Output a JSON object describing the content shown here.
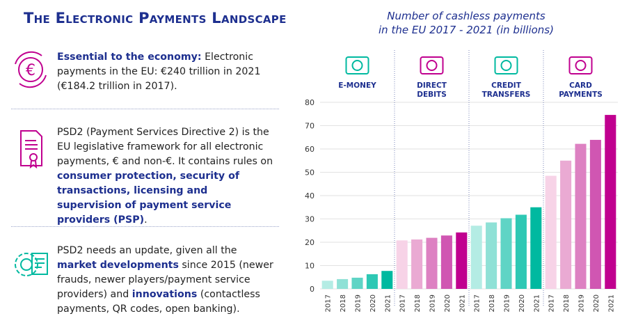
{
  "header": {
    "title": "The Electronic Payments Landscape"
  },
  "blocks": [
    {
      "parts": [
        {
          "text": "Essential to the economy:",
          "bold": true
        },
        {
          "text": " Electronic payments in the EU: €240 trillion in 2021 (€184.2 trillion in 2017)."
        }
      ]
    },
    {
      "parts": [
        {
          "text": "PSD2 (Payment Services Directive 2) is the EU legislative framework for all electronic payments, € and non-€. It contains rules on "
        },
        {
          "text": "consumer protection, security of transactions, licensing and supervision of payment service providers (PSP)",
          "bold": true
        },
        {
          "text": "."
        }
      ]
    },
    {
      "parts": [
        {
          "text": "PSD2 needs an update, given all the "
        },
        {
          "text": "market developments",
          "bold": true
        },
        {
          "text": " since 2015 (newer frauds, newer players/payment service providers) and "
        },
        {
          "text": "innovations",
          "bold": true
        },
        {
          "text": " (contactless payments, QR codes, open banking)."
        }
      ]
    }
  ],
  "chart_data": {
    "type": "bar",
    "title": [
      "Number of cashless payments",
      "in the EU 2017 - 2021 (in billions)"
    ],
    "ylim": [
      0,
      80
    ],
    "yticks": [
      0,
      10,
      20,
      30,
      40,
      50,
      60,
      70,
      80
    ],
    "grid": true,
    "groups": [
      {
        "name": [
          "E-MONEY"
        ],
        "categories": [
          "2017",
          "2018",
          "2019",
          "2020",
          "2021"
        ],
        "values": [
          3.5,
          4.2,
          4.8,
          6.3,
          7.7
        ],
        "colors": [
          "#b4ece4",
          "#8fe1d6",
          "#5fd4c5",
          "#2ec8b4",
          "#00b9a0"
        ]
      },
      {
        "name": [
          "DIRECT",
          "DEBITS"
        ],
        "categories": [
          "2017",
          "2018",
          "2019",
          "2020",
          "2021"
        ],
        "values": [
          20.8,
          21.2,
          21.9,
          22.9,
          24.2
        ],
        "colors": [
          "#f7d3e7",
          "#eaaad3",
          "#dd81c2",
          "#d056b2",
          "#c0008f"
        ]
      },
      {
        "name": [
          "CREDIT",
          "TRANSFERS"
        ],
        "categories": [
          "2017",
          "2018",
          "2019",
          "2020",
          "2021"
        ],
        "values": [
          27.1,
          28.5,
          30.3,
          31.8,
          35.0
        ],
        "colors": [
          "#b4ece4",
          "#8fe1d6",
          "#5fd4c5",
          "#2ec8b4",
          "#00b9a0"
        ]
      },
      {
        "name": [
          "CARD",
          "PAYMENTS"
        ],
        "categories": [
          "2017",
          "2018",
          "2019",
          "2020",
          "2021"
        ],
        "values": [
          48.5,
          55.0,
          62.2,
          63.9,
          74.6
        ],
        "colors": [
          "#f7d3e7",
          "#eaaad3",
          "#dd81c2",
          "#d056b2",
          "#c0008f"
        ]
      }
    ]
  }
}
